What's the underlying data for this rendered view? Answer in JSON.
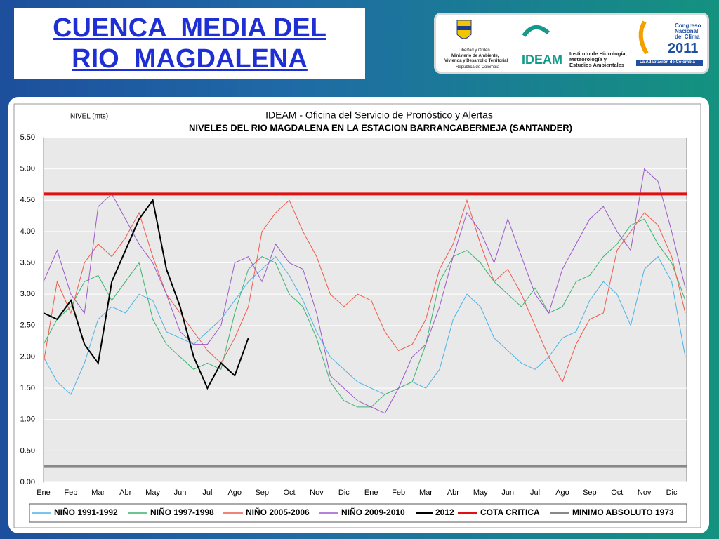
{
  "header": {
    "title": "CUENCA  MEDIA DEL\nRIO  MAGDALENA",
    "logos": {
      "ministry": [
        "Libertad y Orden",
        "Ministerio de Ambiente,",
        "Vivienda y Desarrollo Territorial",
        "República de Colombia"
      ],
      "ideam": "IDEAM",
      "ideam_full": [
        "Instituto de Hidrología,",
        "Meteorología y",
        "Estudios Ambientales"
      ],
      "congress": [
        "Congreso",
        "Nacional",
        "del Clima",
        "2011"
      ],
      "congress_tagline": "La Adaptación de Colombia"
    }
  },
  "chart_data": {
    "type": "line",
    "y_label": "NIVEL (mts)",
    "title": "IDEAM - Oficina del Servicio de Pronóstico y Alertas",
    "subtitle": "NIVELES DEL RIO MAGDALENA EN LA ESTACION BARRANCABERMEJA (SANTANDER)",
    "categories": [
      "Ene",
      null,
      "Feb",
      null,
      "Mar",
      null,
      "Abr",
      null,
      "May",
      null,
      "Jun",
      null,
      "Jul",
      null,
      "Ago",
      null,
      "Sep",
      null,
      "Oct",
      null,
      "Nov",
      null,
      "Dic",
      null,
      "Ene",
      null,
      "Feb",
      null,
      "Mar",
      null,
      "Abr",
      null,
      "May",
      null,
      "Jun",
      null,
      "Jul",
      null,
      "Ago",
      null,
      "Sep",
      null,
      "Oct",
      null,
      "Nov",
      null,
      "Dic",
      null
    ],
    "ylim": [
      0,
      5.5
    ],
    "yticks": [
      {
        "value": 0,
        "label": "0.00"
      },
      {
        "value": 0.5,
        "label": "0.50"
      },
      {
        "value": 1,
        "label": "1.00"
      },
      {
        "value": 1.5,
        "label": "1.50"
      },
      {
        "value": 2,
        "label": "2.00"
      },
      {
        "value": 2.5,
        "label": "2.50"
      },
      {
        "value": 3,
        "label": "3.00"
      },
      {
        "value": 3.5,
        "label": "3.50"
      },
      {
        "value": 4,
        "label": "4.00"
      },
      {
        "value": 4.5,
        "label": "4.50"
      },
      {
        "value": 5,
        "label": "5.00"
      },
      {
        "value": 5.5,
        "label": "5.50"
      }
    ],
    "grid": true,
    "series": [
      {
        "name": "NIÑO 1991-1992",
        "color": "#4db3e6",
        "width": 1,
        "values": [
          2.0,
          1.6,
          1.4,
          1.9,
          2.6,
          2.8,
          2.7,
          3.0,
          2.9,
          2.4,
          2.3,
          2.2,
          2.4,
          2.6,
          2.9,
          3.2,
          3.4,
          3.6,
          3.3,
          2.9,
          2.4,
          2.0,
          1.8,
          1.6,
          1.5,
          1.4,
          1.5,
          1.6,
          1.5,
          1.8,
          2.6,
          3.0,
          2.8,
          2.3,
          2.1,
          1.9,
          1.8,
          2.0,
          2.3,
          2.4,
          2.9,
          3.2,
          3.0,
          2.5,
          3.4,
          3.6,
          3.2,
          2.0
        ]
      },
      {
        "name": "NIÑO 1997-1998",
        "color": "#3cb371",
        "width": 1,
        "values": [
          2.2,
          2.6,
          2.8,
          3.2,
          3.3,
          2.9,
          3.2,
          3.5,
          2.6,
          2.2,
          2.0,
          1.8,
          1.9,
          1.8,
          2.7,
          3.4,
          3.6,
          3.5,
          3.0,
          2.8,
          2.3,
          1.6,
          1.3,
          1.2,
          1.2,
          1.4,
          1.5,
          1.6,
          2.2,
          3.2,
          3.6,
          3.7,
          3.5,
          3.2,
          3.0,
          2.8,
          3.1,
          2.7,
          2.8,
          3.2,
          3.3,
          3.6,
          3.8,
          4.1,
          4.2,
          3.8,
          3.5,
          2.9
        ]
      },
      {
        "name": "NIÑO 2005-2006",
        "color": "#f05a4a",
        "width": 1,
        "values": [
          1.9,
          3.2,
          2.7,
          3.5,
          3.8,
          3.6,
          3.9,
          4.3,
          3.6,
          3.0,
          2.7,
          2.4,
          2.1,
          1.9,
          2.3,
          2.8,
          4.0,
          4.3,
          4.5,
          4.0,
          3.6,
          3.0,
          2.8,
          3.0,
          2.9,
          2.4,
          2.1,
          2.2,
          2.6,
          3.4,
          3.8,
          4.5,
          3.8,
          3.2,
          3.4,
          3.0,
          2.5,
          2.0,
          1.6,
          2.2,
          2.6,
          2.7,
          3.7,
          4.0,
          4.3,
          4.1,
          3.6,
          2.7
        ]
      },
      {
        "name": "NIÑO 2009-2010",
        "color": "#9b59c9",
        "width": 1,
        "values": [
          3.2,
          3.7,
          3.0,
          2.7,
          4.4,
          4.6,
          4.2,
          3.8,
          3.5,
          3.0,
          2.4,
          2.2,
          2.2,
          2.5,
          3.5,
          3.6,
          3.2,
          3.8,
          3.5,
          3.4,
          2.7,
          1.7,
          1.5,
          1.3,
          1.2,
          1.1,
          1.5,
          2.0,
          2.2,
          2.8,
          3.6,
          4.3,
          4.0,
          3.5,
          4.2,
          3.6,
          3.0,
          2.7,
          3.4,
          3.8,
          4.2,
          4.4,
          4.0,
          3.7,
          5.0,
          4.8,
          4.0,
          3.1
        ]
      },
      {
        "name": "2012",
        "color": "#000000",
        "width": 2,
        "values": [
          2.7,
          2.6,
          2.9,
          2.2,
          1.9,
          3.2,
          3.7,
          4.2,
          4.5,
          3.4,
          2.8,
          2.0,
          1.5,
          1.9,
          1.7,
          2.3,
          null,
          null,
          null,
          null,
          null,
          null,
          null,
          null,
          null,
          null,
          null,
          null,
          null,
          null,
          null,
          null,
          null,
          null,
          null,
          null,
          null,
          null,
          null,
          null,
          null,
          null,
          null,
          null,
          null,
          null,
          null,
          null
        ]
      }
    ],
    "reference_lines": [
      {
        "name": "COTA CRITICA",
        "color": "#e01010",
        "width": 4,
        "value": 4.6
      },
      {
        "name": "MINIMO ABSOLUTO 1973",
        "color": "#888888",
        "width": 4,
        "value": 0.25
      }
    ]
  }
}
